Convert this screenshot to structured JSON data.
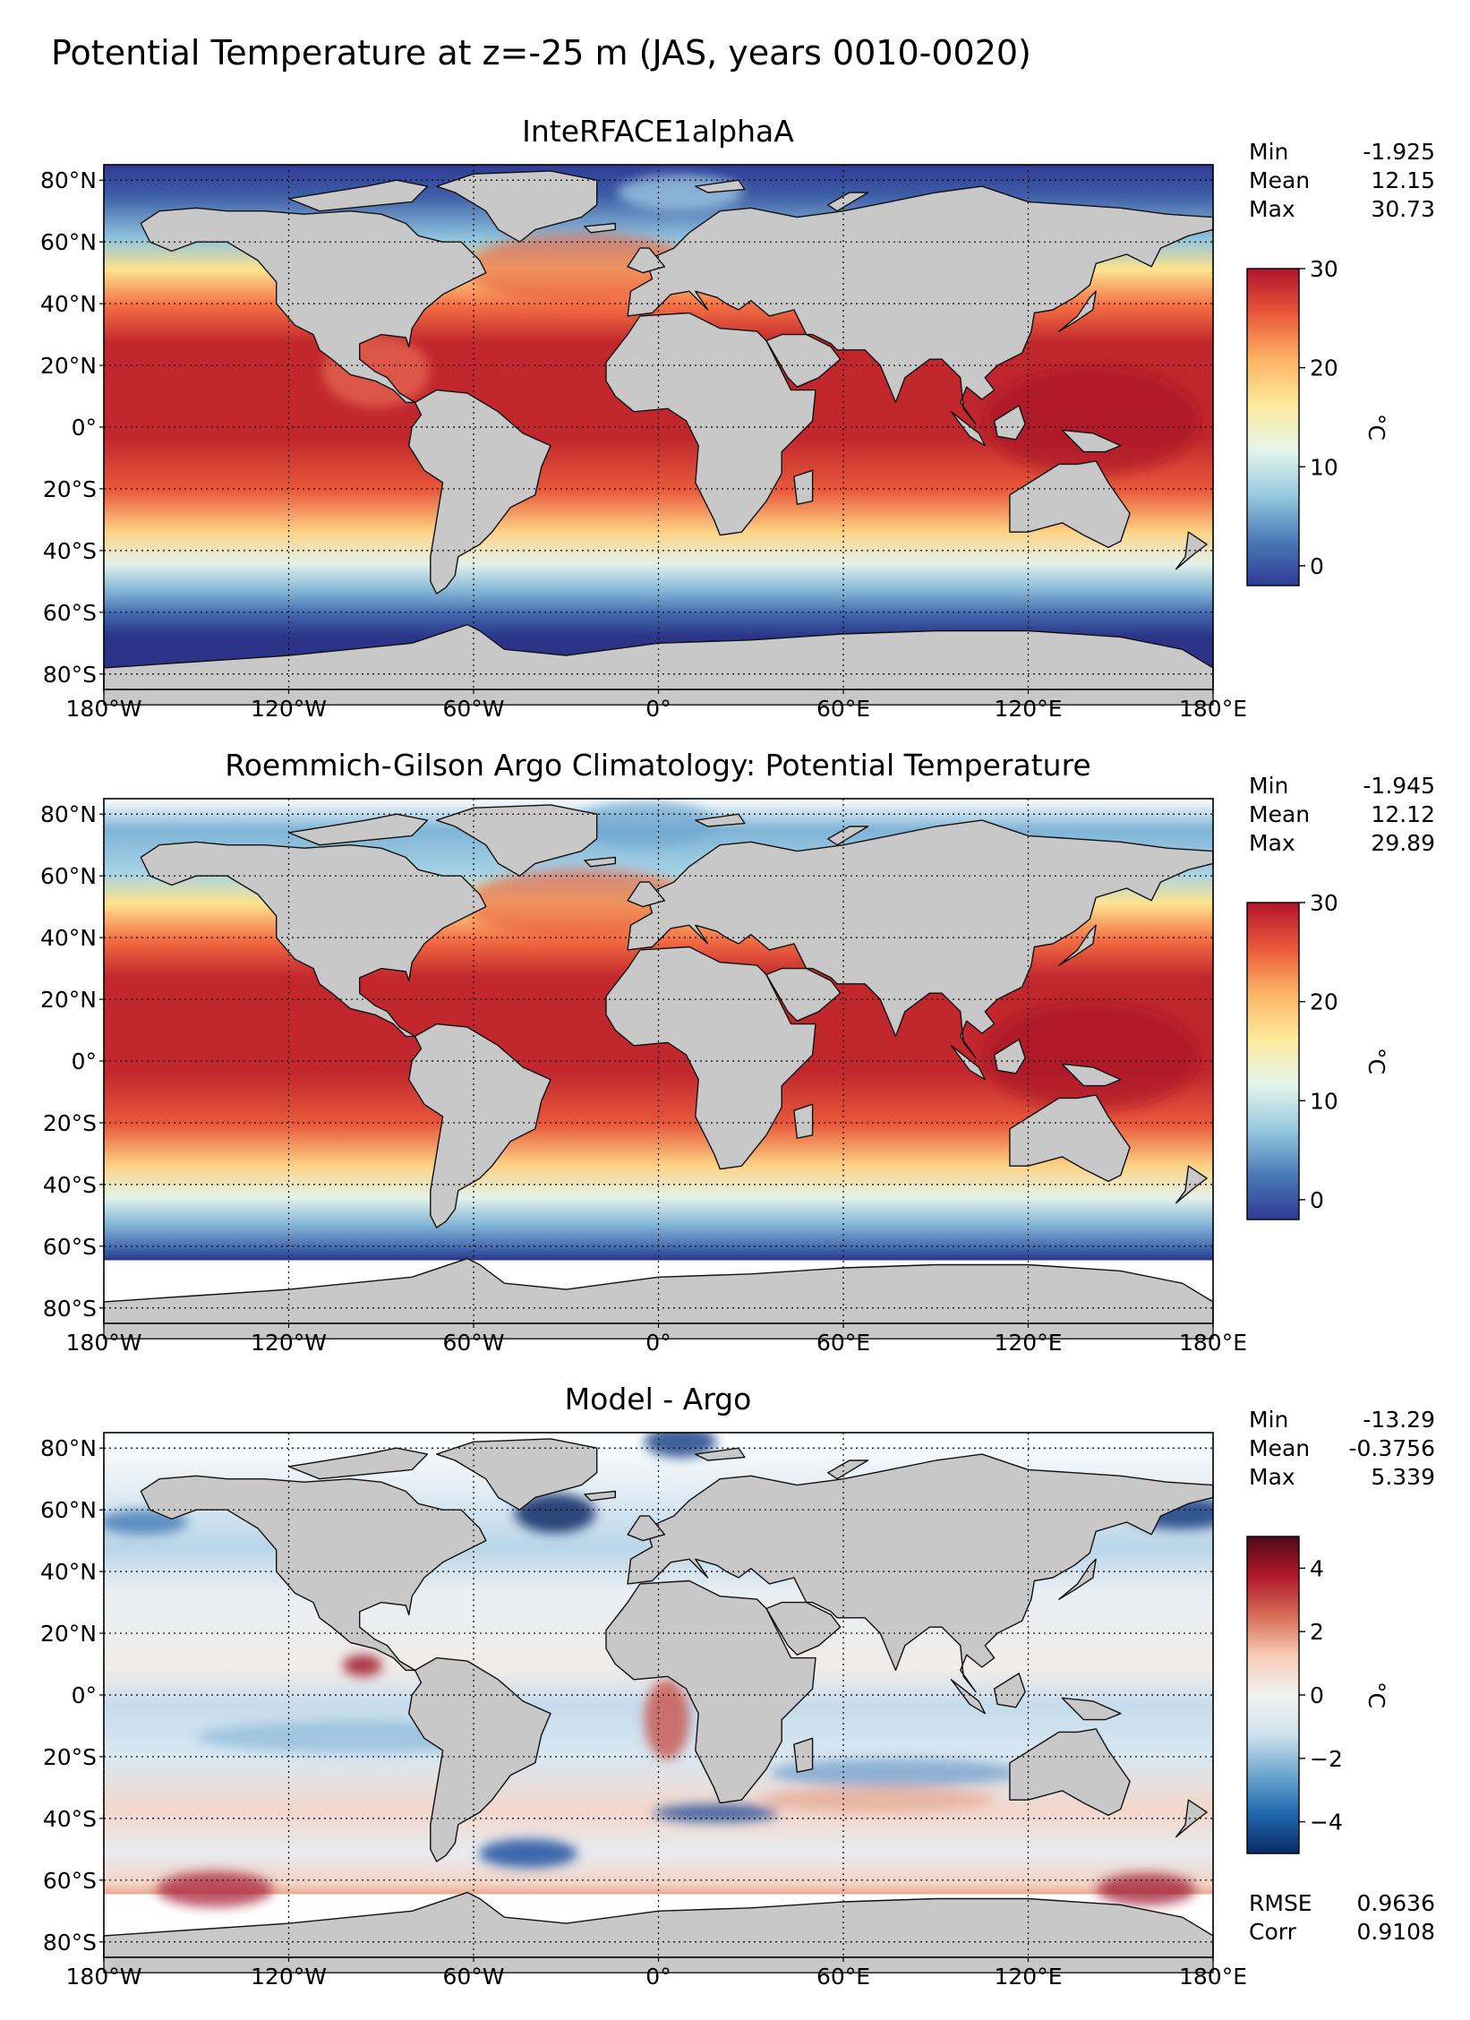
{
  "figure_title": "Potential Temperature at z=-25 m (JAS, years 0010-0020)",
  "lon_ticks": [
    "180°W",
    "120°W",
    "60°W",
    "0°",
    "60°E",
    "120°E",
    "180°E"
  ],
  "lat_ticks": [
    "80°N",
    "60°N",
    "40°N",
    "20°N",
    "0°",
    "20°S",
    "40°S",
    "60°S",
    "80°S"
  ],
  "panels": [
    {
      "title": "InteRFACE1alphaA",
      "stats": [
        {
          "label": "Min",
          "value": "-1.925"
        },
        {
          "label": "Mean",
          "value": "12.15"
        },
        {
          "label": "Max",
          "value": "30.73"
        }
      ],
      "colorbar": {
        "label": "°C",
        "ticks": [
          "0",
          "10",
          "20",
          "30"
        ],
        "tick_values": [
          0,
          10,
          20,
          30
        ],
        "range": [
          -2,
          30
        ],
        "colors": [
          "#2f3a95",
          "#4a7bb7",
          "#98cae0",
          "#e6f5eb",
          "#fee99a",
          "#fdb366",
          "#ea5839",
          "#b2132c"
        ]
      }
    },
    {
      "title": "Roemmich-Gilson Argo Climatology: Potential Temperature",
      "stats": [
        {
          "label": "Min",
          "value": "-1.945"
        },
        {
          "label": "Mean",
          "value": "12.12"
        },
        {
          "label": "Max",
          "value": "29.89"
        }
      ],
      "colorbar": {
        "label": "°C",
        "ticks": [
          "0",
          "10",
          "20",
          "30"
        ],
        "tick_values": [
          0,
          10,
          20,
          30
        ],
        "range": [
          -2,
          30
        ],
        "colors": [
          "#2f3a95",
          "#4a7bb7",
          "#98cae0",
          "#e6f5eb",
          "#fee99a",
          "#fdb366",
          "#ea5839",
          "#b2132c"
        ]
      }
    },
    {
      "title": "Model - Argo",
      "stats": [
        {
          "label": "Min",
          "value": "-13.29"
        },
        {
          "label": "Mean",
          "value": "-0.3756"
        },
        {
          "label": "Max",
          "value": "5.339"
        }
      ],
      "colorbar": {
        "label": "°C",
        "ticks": [
          "−4",
          "−2",
          "0",
          "2",
          "4"
        ],
        "tick_values": [
          -4,
          -2,
          0,
          2,
          4
        ],
        "range": [
          -5,
          5
        ],
        "colors": [
          "#0a2b66",
          "#2067ad",
          "#6ea8d0",
          "#cfe2ee",
          "#f2f2f2",
          "#f7cbb4",
          "#d56d58",
          "#b1182b",
          "#4f0a18"
        ]
      },
      "extra_stats": [
        {
          "label": "RMSE",
          "value": "0.9636"
        },
        {
          "label": "Corr",
          "value": "0.9108"
        }
      ]
    }
  ],
  "colors": {
    "land": "#c8c8c8",
    "coast": "#111111",
    "warm": "#c2262e",
    "cold": "#2b3c93"
  }
}
